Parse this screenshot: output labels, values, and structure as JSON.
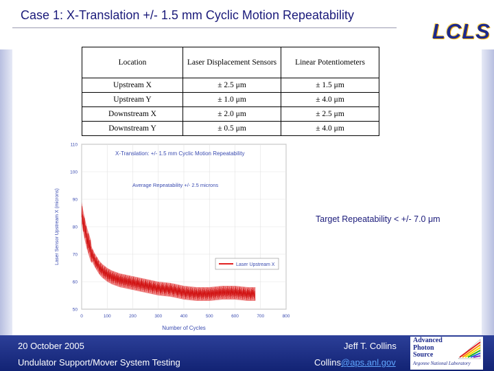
{
  "slide": {
    "title": "Case 1: X-Translation +/- 1.5 mm Cyclic Motion Repeatability",
    "logo": "LCLS",
    "target_text": "Target Repeatability < +/- 7.0 μm"
  },
  "table": {
    "headers": [
      "Location",
      "Laser Displacement Sensors",
      "Linear Potentiometers"
    ],
    "rows": [
      [
        "Upstream X",
        "± 2.5 μm",
        "± 1.5 μm"
      ],
      [
        "Upstream Y",
        "± 1.0 μm",
        "± 4.0 μm"
      ],
      [
        "Downstream X",
        "± 2.0 μm",
        "± 2.5 μm"
      ],
      [
        "Downstream Y",
        "± 0.5 μm",
        "± 4.0 μm"
      ]
    ]
  },
  "footer": {
    "date": "20 October 2005",
    "subtitle": "Undulator Support/Mover System Testing",
    "author": "Jeff T. Collins",
    "email_user": "Collins",
    "email_domain": "@aps.anl.gov",
    "aps_lines": [
      "Advanced",
      "Photon",
      "Source"
    ],
    "aps_sub": "Argonne National Laboratory"
  },
  "colors": {
    "title": "#1a1a7a",
    "series": "#e02020",
    "footer": "#1e2f86"
  },
  "chart_data": {
    "type": "line",
    "title": "X-Translation: +/- 1.5 mm Cyclic Motion Repeatability",
    "annotation": "Average Repeatability  +/- 2.5 microns",
    "xlabel": "Number of Cycles",
    "ylabel": "Laser Sensor Upstream X (microns)",
    "xlim": [
      0,
      800
    ],
    "ylim": [
      50,
      110
    ],
    "xticks": [
      0,
      100,
      200,
      300,
      400,
      500,
      600,
      700,
      800
    ],
    "yticks": [
      50,
      60,
      70,
      80,
      90,
      100,
      110
    ],
    "grid": true,
    "legend": "right",
    "series": [
      {
        "name": "Laser Upstream X",
        "x": [
          0,
          10,
          20,
          30,
          40,
          50,
          60,
          70,
          80,
          100,
          120,
          150,
          200,
          250,
          300,
          350,
          400,
          450,
          500,
          550,
          600,
          650,
          680
        ],
        "y": [
          85,
          80,
          76,
          73,
          70,
          68,
          66.5,
          65,
          64,
          62.5,
          61.5,
          60.5,
          59.5,
          58.5,
          57.5,
          57,
          56,
          55.5,
          55.5,
          56,
          56,
          55.5,
          55.5
        ],
        "band": 2.5
      }
    ]
  }
}
